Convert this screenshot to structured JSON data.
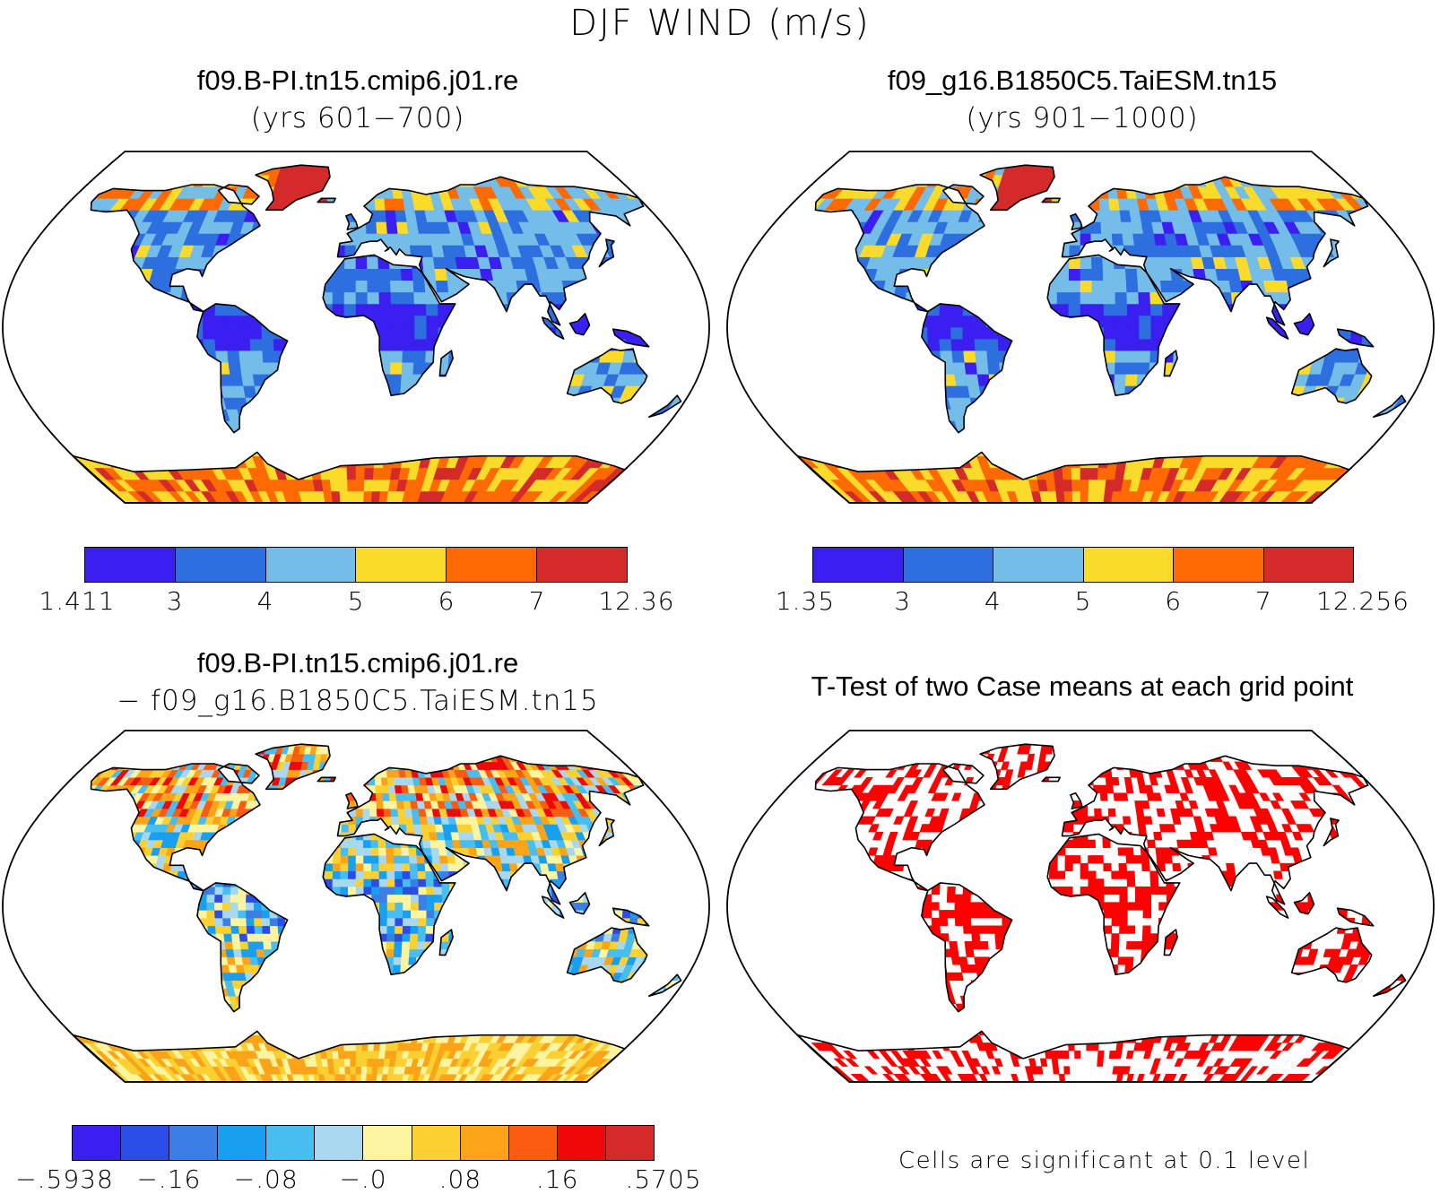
{
  "figure": {
    "title": "DJF WIND (m/s)"
  },
  "panels": [
    {
      "id": "case1",
      "title": "f09.B-PI.tn15.cmip6.j01.re",
      "subtitle": "(yrs 601−700)",
      "colorbar": {
        "colors": [
          "#3a1ff0",
          "#2e6fe0",
          "#74bde8",
          "#fbdb2a",
          "#fd6a03",
          "#d42a2a"
        ],
        "labels": [
          "1.411",
          "3",
          "4",
          "5",
          "6",
          "7",
          "12.36"
        ]
      }
    },
    {
      "id": "case2",
      "title": "f09_g16.B1850C5.TaiESM.tn15",
      "subtitle": "(yrs 901−1000)",
      "colorbar": {
        "colors": [
          "#3a1ff0",
          "#2e6fe0",
          "#74bde8",
          "#fbdb2a",
          "#fd6a03",
          "#d42a2a"
        ],
        "labels": [
          "1.35",
          "3",
          "4",
          "5",
          "6",
          "7",
          "12.256"
        ]
      }
    },
    {
      "id": "diff",
      "title": "f09.B-PI.tn15.cmip6.j01.re",
      "subtitle": "− f09_g16.B1850C5.TaiESM.tn15",
      "colorbar": {
        "colors": [
          "#3a1ff0",
          "#2a4de6",
          "#3b7fe6",
          "#199ff0",
          "#48bdf0",
          "#a8d8f0",
          "#fdf4a0",
          "#fbd030",
          "#fba418",
          "#fb5c10",
          "#ee0808",
          "#d42a2a"
        ],
        "labels": [
          "−.5938",
          "−.16",
          "−.08",
          "−.0",
          ".08",
          ".16",
          ".5705"
        ]
      }
    },
    {
      "id": "ttest",
      "title": "T-Test of two Case means at each grid point",
      "note": "Cells are significant at 0.1 level"
    }
  ]
}
